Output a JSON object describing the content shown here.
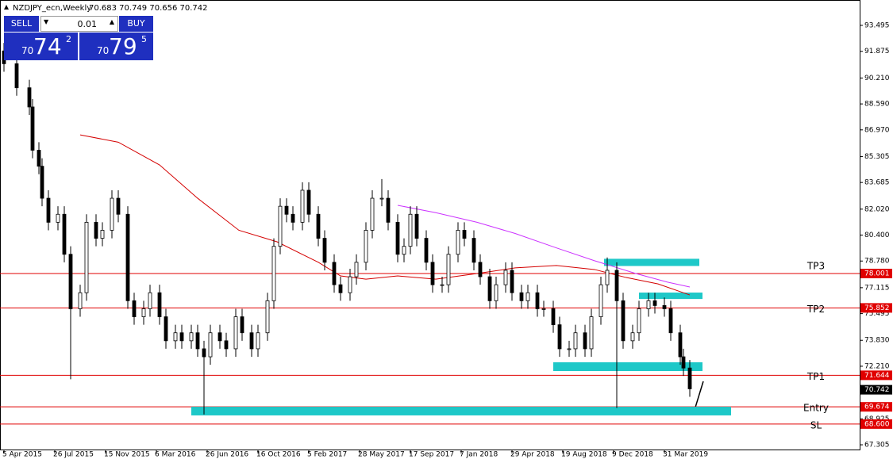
{
  "chart_data": {
    "type": "candlestick",
    "title": "NZDJPY_ecn,Weekly",
    "subtitle": "70.683 70.749 70.656 70.742",
    "xlim": [
      0,
      269.5
    ],
    "ylim": [
      66.96,
      95.08
    ],
    "xticks": [
      {
        "value": 0,
        "label": "5 Apr 2015"
      },
      {
        "value": 16,
        "label": "26 Jul 2015"
      },
      {
        "value": 32,
        "label": "15 Nov 2015"
      },
      {
        "value": 48,
        "label": "6 Mar 2016"
      },
      {
        "value": 64,
        "label": "26 Jun 2016"
      },
      {
        "value": 80,
        "label": "16 Oct 2016"
      },
      {
        "value": 96,
        "label": "5 Feb 2017"
      },
      {
        "value": 112,
        "label": "28 May 2017"
      },
      {
        "value": 128,
        "label": "17 Sep 2017"
      },
      {
        "value": 144,
        "label": "7 Jan 2018"
      },
      {
        "value": 160,
        "label": "29 Apr 2018"
      },
      {
        "value": 176,
        "label": "19 Aug 2018"
      },
      {
        "value": 192,
        "label": "9 Dec 2018"
      },
      {
        "value": 208,
        "label": "31 Mar 2019"
      }
    ],
    "yticks": [
      93.495,
      91.875,
      {
        "value": 90.21,
        "label": "90.210"
      },
      {
        "value": 88.59,
        "label": "88.590"
      },
      {
        "value": 86.97,
        "label": "86.970"
      },
      85.305,
      83.685,
      {
        "value": 82.02,
        "label": "82.020"
      },
      {
        "value": 80.4,
        "label": "80.400"
      },
      {
        "value": 78.78,
        "label": "78.780"
      },
      77.115,
      75.495,
      {
        "value": 73.83,
        "label": "73.830"
      },
      {
        "value": 72.21,
        "label": "72.210"
      },
      68.925,
      67.305
    ],
    "x": [
      0,
      4,
      8,
      9,
      11,
      12,
      14,
      17,
      19,
      21,
      24,
      26,
      29,
      31,
      34,
      36,
      39,
      41,
      44,
      46,
      49,
      51,
      54,
      56,
      59,
      61,
      63,
      65,
      68,
      70,
      73,
      75,
      78,
      80,
      83,
      85,
      87,
      89,
      91,
      94,
      96,
      99,
      101,
      104,
      106,
      109,
      111,
      114,
      116,
      119,
      121,
      124,
      126,
      128,
      130,
      133,
      135,
      138,
      140,
      143,
      145,
      148,
      150,
      153,
      155,
      158,
      160,
      163,
      165,
      168,
      170,
      173,
      175,
      178,
      180,
      183,
      185,
      188,
      190,
      193,
      195,
      198,
      200,
      203,
      205,
      208,
      210,
      213,
      214,
      216
    ],
    "open": [
      91.9,
      91.1,
      89.6,
      88.4,
      85.7,
      84.7,
      82.7,
      81.2,
      81.7,
      79.2,
      75.8,
      76.8,
      81.2,
      80.2,
      80.7,
      82.7,
      81.7,
      76.3,
      75.3,
      75.8,
      76.8,
      75.3,
      73.8,
      74.3,
      73.8,
      74.3,
      73.3,
      72.8,
      74.3,
      73.8,
      73.3,
      75.3,
      74.3,
      73.3,
      74.3,
      76.3,
      79.7,
      82.2,
      81.7,
      81.2,
      83.2,
      81.7,
      80.2,
      78.7,
      77.3,
      76.8,
      77.8,
      78.7,
      80.7,
      82.7,
      82.7,
      81.2,
      79.2,
      79.7,
      81.7,
      80.2,
      78.7,
      77.3,
      77.3,
      79.2,
      80.7,
      80.2,
      78.7,
      77.8,
      76.3,
      77.3,
      78.2,
      76.8,
      76.3,
      76.8,
      75.8,
      75.8,
      74.8,
      73.3,
      73.3,
      74.3,
      73.3,
      75.3,
      77.3,
      78.2,
      76.3,
      73.8,
      74.3,
      75.8,
      76.3,
      76.0,
      75.8,
      74.3,
      72.8,
      72.1
    ],
    "high": [
      92.4,
      91.6,
      90.1,
      88.9,
      86.2,
      85.2,
      83.2,
      82.2,
      82.2,
      79.7,
      77.3,
      81.7,
      81.7,
      81.2,
      83.2,
      83.2,
      82.2,
      76.8,
      76.3,
      77.3,
      77.3,
      75.8,
      74.8,
      74.8,
      74.8,
      74.8,
      73.8,
      74.8,
      74.8,
      74.3,
      75.8,
      75.8,
      74.8,
      74.8,
      76.8,
      80.2,
      82.7,
      82.7,
      82.2,
      83.7,
      83.7,
      82.2,
      80.7,
      79.2,
      77.8,
      78.3,
      79.2,
      81.2,
      83.2,
      83.9,
      83.2,
      81.7,
      80.2,
      82.2,
      82.2,
      80.7,
      79.2,
      77.8,
      79.7,
      81.2,
      81.2,
      80.7,
      79.2,
      78.3,
      77.8,
      78.7,
      78.7,
      77.3,
      77.3,
      77.3,
      76.3,
      76.3,
      75.3,
      73.8,
      74.8,
      74.8,
      75.8,
      77.8,
      79.0,
      78.7,
      76.8,
      74.8,
      76.3,
      76.8,
      76.8,
      76.5,
      76.3,
      74.8,
      73.3,
      72.6
    ],
    "low": [
      90.6,
      89.1,
      87.9,
      85.2,
      84.2,
      82.2,
      80.7,
      80.7,
      78.7,
      71.4,
      75.3,
      76.3,
      79.7,
      79.7,
      80.2,
      81.2,
      75.8,
      74.8,
      74.8,
      75.3,
      74.8,
      73.3,
      73.3,
      73.3,
      73.3,
      72.8,
      69.2,
      72.3,
      73.3,
      72.8,
      72.8,
      73.8,
      72.8,
      72.8,
      73.8,
      75.8,
      79.2,
      81.2,
      80.7,
      80.7,
      81.2,
      79.7,
      78.2,
      76.8,
      76.3,
      76.3,
      77.3,
      78.2,
      80.2,
      82.2,
      80.7,
      78.7,
      78.7,
      79.2,
      79.7,
      78.2,
      76.8,
      76.8,
      76.8,
      78.7,
      79.7,
      78.2,
      77.3,
      75.8,
      75.8,
      76.8,
      76.3,
      75.8,
      75.8,
      75.3,
      75.3,
      74.3,
      72.8,
      72.8,
      72.8,
      72.8,
      72.8,
      74.8,
      76.8,
      69.6,
      73.3,
      73.3,
      73.8,
      75.3,
      75.5,
      75.3,
      73.8,
      72.3,
      71.6,
      70.3
    ],
    "close": [
      91.1,
      89.6,
      88.4,
      85.7,
      84.7,
      82.7,
      81.2,
      81.7,
      79.2,
      75.8,
      76.8,
      81.2,
      80.2,
      80.7,
      82.7,
      81.7,
      76.3,
      75.3,
      75.8,
      76.8,
      75.3,
      73.8,
      74.3,
      73.8,
      74.3,
      73.3,
      72.8,
      74.3,
      73.8,
      73.3,
      75.3,
      74.3,
      73.3,
      74.3,
      76.3,
      79.7,
      82.2,
      81.7,
      81.2,
      83.2,
      81.7,
      80.2,
      78.7,
      77.3,
      76.8,
      77.8,
      78.7,
      80.7,
      82.7,
      82.7,
      81.2,
      79.2,
      79.7,
      81.7,
      80.2,
      78.7,
      77.3,
      77.3,
      79.2,
      80.7,
      80.2,
      78.7,
      77.8,
      76.3,
      77.3,
      78.2,
      76.8,
      76.3,
      76.8,
      75.8,
      75.8,
      74.8,
      73.3,
      73.3,
      74.3,
      73.3,
      75.3,
      77.3,
      78.2,
      76.3,
      73.8,
      74.3,
      75.8,
      76.3,
      76.0,
      75.8,
      74.3,
      72.8,
      72.1,
      70.8
    ],
    "series": [
      {
        "color": "#d40000",
        "x": [
          24,
          36,
          49,
          61,
          74,
          86,
          99,
          106,
          114,
          124,
          136,
          149,
          161,
          174,
          186,
          196,
          206,
          216
        ],
        "values": [
          86.66,
          86.2,
          84.78,
          82.7,
          80.7,
          79.98,
          78.7,
          77.85,
          77.65,
          77.85,
          77.65,
          78.0,
          78.35,
          78.5,
          78.25,
          77.75,
          77.35,
          76.66
        ]
      },
      {
        "color": "#cc33ff",
        "x": [
          124,
          136,
          149,
          161,
          174,
          186,
          199,
          209,
          216
        ],
        "values": [
          82.26,
          81.8,
          81.2,
          80.5,
          79.6,
          78.8,
          78.0,
          77.46,
          77.16
        ]
      }
    ],
    "zones": [
      {
        "from": 189,
        "to": 219,
        "top": 78.92,
        "bottom": 78.47
      },
      {
        "from": 200,
        "to": 220,
        "top": 76.81,
        "bottom": 76.41
      },
      {
        "from": 173,
        "to": 220,
        "top": 72.46,
        "bottom": 71.91
      },
      {
        "from": 59,
        "to": 229,
        "top": 69.68,
        "bottom": 69.14
      }
    ],
    "zone_color": "#1ec8c8",
    "levels": [
      {
        "value": 78.001,
        "price_label": "78.001",
        "label": "TP3"
      },
      {
        "value": 75.852,
        "price_label": "75.852",
        "label": "TP2"
      },
      {
        "value": 71.644,
        "price_label": "71.644",
        "label": "TP1"
      },
      {
        "value": 69.674,
        "price_label": "69.674",
        "label": "Entry"
      },
      {
        "value": 68.6,
        "price_label": "68.600",
        "label": "SL"
      }
    ],
    "level_color": "#e00000",
    "current_price": 70.742
  },
  "trade_panel": {
    "sell": "SELL",
    "buy": "BUY",
    "lot": "0.01",
    "bid_big": "70",
    "bid_main": "74",
    "bid_small": "2",
    "ask_big": "70",
    "ask_main": "79",
    "ask_small": "5"
  }
}
